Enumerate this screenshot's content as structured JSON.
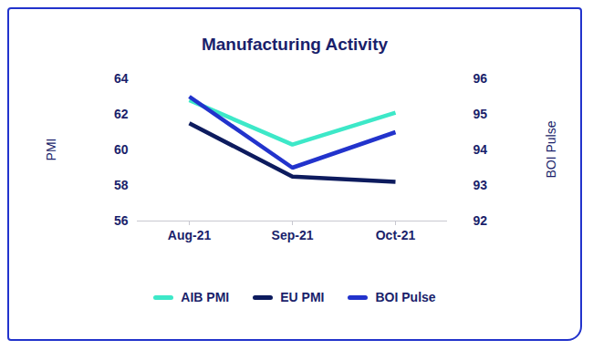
{
  "chart_data": {
    "type": "line",
    "title": "Manufacturing Activity",
    "categories": [
      "Aug-21",
      "Sep-21",
      "Oct-21"
    ],
    "series": [
      {
        "name": "AIB PMI",
        "color": "#3de8c8",
        "values": [
          62.8,
          60.3,
          62.1
        ]
      },
      {
        "name": "EU PMI",
        "color": "#0d1b5e",
        "values": [
          61.5,
          58.5,
          58.2
        ]
      },
      {
        "name": "BOI Pulse",
        "color": "#2233cc",
        "values": [
          95.5,
          93.5,
          94.5
        ],
        "axis": "y2"
      }
    ],
    "ylabel": "PMI",
    "y2label": "BOI Pulse",
    "ylim": [
      56,
      64
    ],
    "yticks": [
      56,
      58,
      60,
      62,
      64
    ],
    "y2lim": [
      92,
      96
    ],
    "y2ticks": [
      92,
      93,
      94,
      95,
      96
    ],
    "legend": "bottom"
  }
}
